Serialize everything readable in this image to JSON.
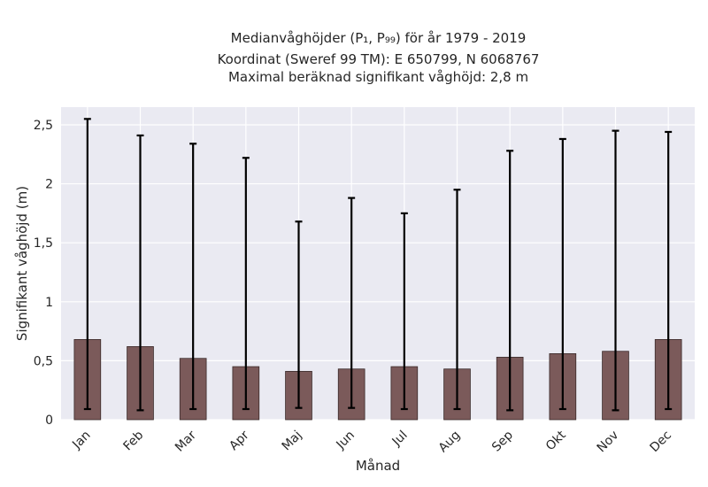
{
  "chart_data": {
    "type": "bar",
    "title": "Medianvåghöjder (P1, P99) för år 1979 - 2019",
    "title_lines": [
      "Medianvåghöjder (P₁, P₉₉) för år 1979 - 2019",
      "Koordinat (Sweref 99 TM): E 650799, N 6068767",
      "Maximal beräknad signifikant våghöjd: 2,8 m"
    ],
    "xlabel": "Månad",
    "ylabel": "Signifikant våghöjd (m)",
    "categories": [
      "Jan",
      "Feb",
      "Mar",
      "Apr",
      "Maj",
      "Jun",
      "Jul",
      "Aug",
      "Sep",
      "Okt",
      "Nov",
      "Dec"
    ],
    "values": [
      0.68,
      0.62,
      0.52,
      0.45,
      0.41,
      0.43,
      0.45,
      0.43,
      0.53,
      0.56,
      0.58,
      0.68
    ],
    "error_low": [
      0.09,
      0.08,
      0.09,
      0.09,
      0.1,
      0.1,
      0.09,
      0.09,
      0.08,
      0.09,
      0.08,
      0.09
    ],
    "error_high": [
      2.55,
      2.41,
      2.34,
      2.22,
      1.68,
      1.88,
      1.75,
      1.95,
      2.28,
      2.38,
      2.45,
      2.44
    ],
    "ylim": [
      0,
      2.65
    ],
    "yticks": [
      0,
      0.5,
      1,
      1.5,
      2,
      2.5
    ],
    "ytick_labels": [
      "0",
      "0,5",
      "1",
      "1,5",
      "2",
      "2,5"
    ],
    "grid": true,
    "colors": {
      "bar": "#7b5a5a",
      "bar_edge": "#3a2a2a",
      "error_bar": "#000000",
      "plot_background": "#eaeaf2",
      "grid": "#ffffff"
    }
  }
}
